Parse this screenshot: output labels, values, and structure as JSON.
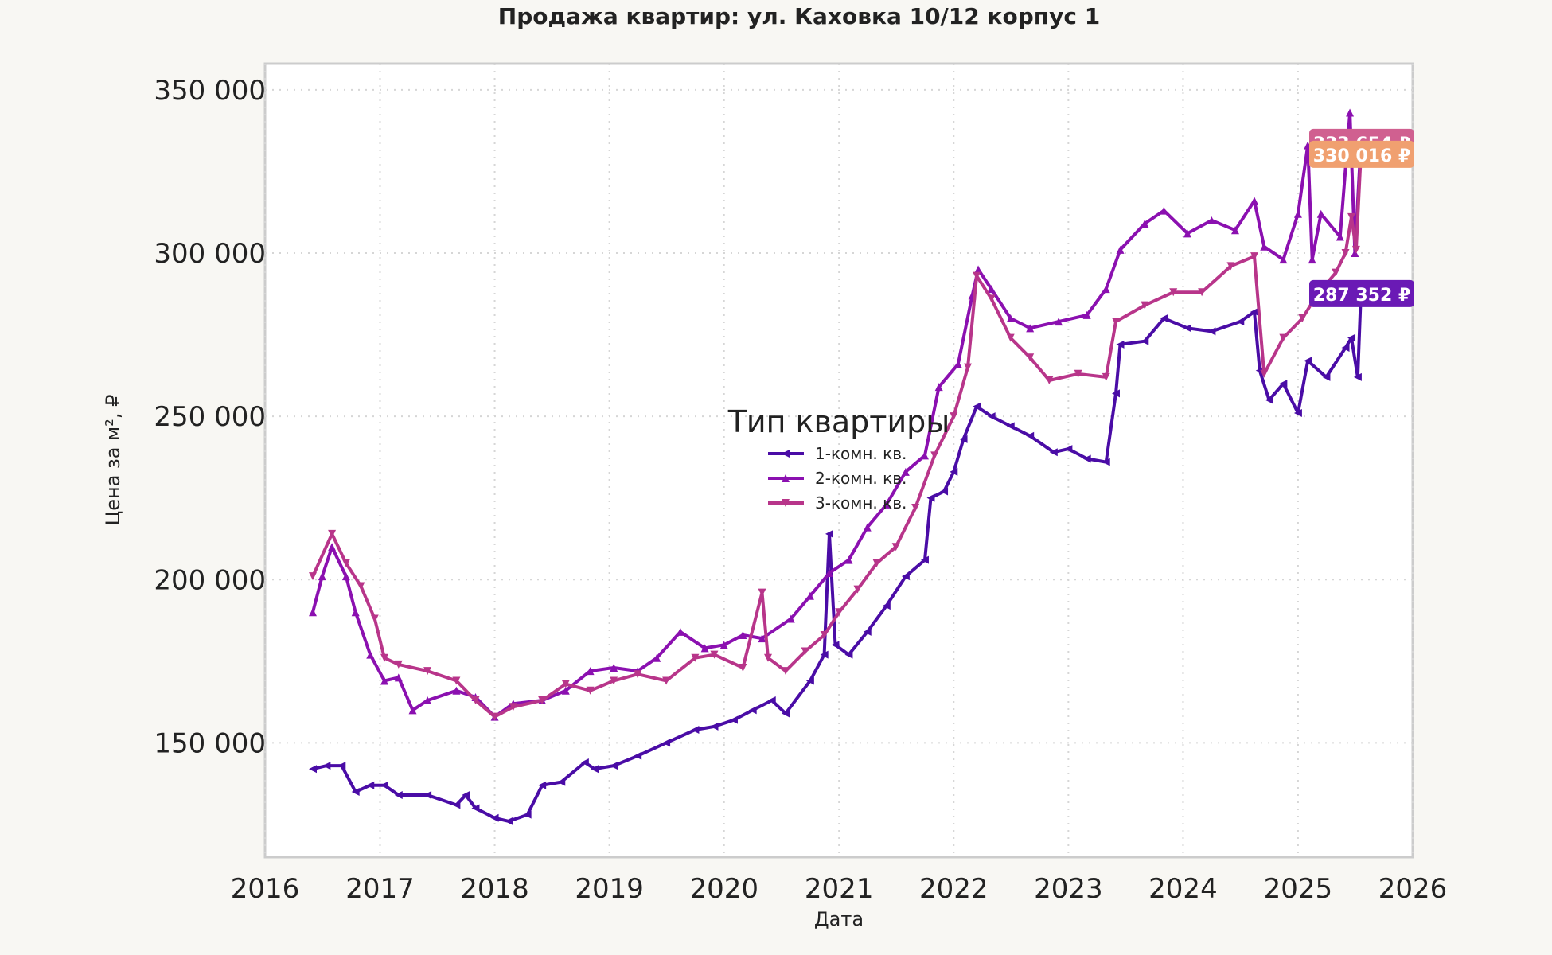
{
  "chart_data": {
    "type": "line",
    "title": "Продажа квартир: ул. Каховка 10/12 корпус 1",
    "xlabel": "Дата",
    "ylabel": "Цена за м², ₽",
    "xlim": [
      "2016-01-01",
      "2026-01-01"
    ],
    "ylim": [
      115000,
      358000
    ],
    "x_ticks": [
      "2016",
      "2017",
      "2018",
      "2019",
      "2020",
      "2021",
      "2022",
      "2023",
      "2024",
      "2025",
      "2026"
    ],
    "y_ticks": [
      150000,
      200000,
      250000,
      300000,
      350000
    ],
    "y_tick_labels": [
      "150 000",
      "200 000",
      "250 000",
      "300 000",
      "350 000"
    ],
    "grid": true,
    "legend": {
      "title": "Тип квартиры",
      "position": "center"
    },
    "series": [
      {
        "name": "1-комн. кв.",
        "color": "#4a0ca6",
        "marker": "triangle-left",
        "points": [
          [
            "2016-06-01",
            142000
          ],
          [
            "2016-07-15",
            143000
          ],
          [
            "2016-09-01",
            143000
          ],
          [
            "2016-10-15",
            135000
          ],
          [
            "2016-12-01",
            137000
          ],
          [
            "2017-01-15",
            137000
          ],
          [
            "2017-03-01",
            134000
          ],
          [
            "2017-06-01",
            134000
          ],
          [
            "2017-09-01",
            131000
          ],
          [
            "2017-10-01",
            134000
          ],
          [
            "2017-11-01",
            130000
          ],
          [
            "2018-01-01",
            127000
          ],
          [
            "2018-02-15",
            126000
          ],
          [
            "2018-04-15",
            128000
          ],
          [
            "2018-06-01",
            137000
          ],
          [
            "2018-08-01",
            138000
          ],
          [
            "2018-10-15",
            144000
          ],
          [
            "2018-11-15",
            142000
          ],
          [
            "2019-01-15",
            143000
          ],
          [
            "2019-04-01",
            146000
          ],
          [
            "2019-07-01",
            150000
          ],
          [
            "2019-10-01",
            154000
          ],
          [
            "2019-12-01",
            155000
          ],
          [
            "2020-02-01",
            157000
          ],
          [
            "2020-04-01",
            160000
          ],
          [
            "2020-06-01",
            163000
          ],
          [
            "2020-07-15",
            159000
          ],
          [
            "2020-10-01",
            169000
          ],
          [
            "2020-11-15",
            177000
          ],
          [
            "2020-12-01",
            214000
          ],
          [
            "2020-12-20",
            180000
          ],
          [
            "2021-02-01",
            177000
          ],
          [
            "2021-04-01",
            184000
          ],
          [
            "2021-06-01",
            192000
          ],
          [
            "2021-08-01",
            201000
          ],
          [
            "2021-10-01",
            206000
          ],
          [
            "2021-10-20",
            225000
          ],
          [
            "2021-12-01",
            227000
          ],
          [
            "2022-01-01",
            233000
          ],
          [
            "2022-02-01",
            243000
          ],
          [
            "2022-03-15",
            253000
          ],
          [
            "2022-05-01",
            250000
          ],
          [
            "2022-07-01",
            247000
          ],
          [
            "2022-09-01",
            244000
          ],
          [
            "2022-11-15",
            239000
          ],
          [
            "2023-01-01",
            240000
          ],
          [
            "2023-03-01",
            237000
          ],
          [
            "2023-05-01",
            236000
          ],
          [
            "2023-06-01",
            257000
          ],
          [
            "2023-06-15",
            272000
          ],
          [
            "2023-09-01",
            273000
          ],
          [
            "2023-11-01",
            280000
          ],
          [
            "2024-01-15",
            277000
          ],
          [
            "2024-04-01",
            276000
          ],
          [
            "2024-07-01",
            279000
          ],
          [
            "2024-08-15",
            282000
          ],
          [
            "2024-09-01",
            264000
          ],
          [
            "2024-10-01",
            255000
          ],
          [
            "2024-11-15",
            260000
          ],
          [
            "2025-01-01",
            251000
          ],
          [
            "2025-02-01",
            267000
          ],
          [
            "2025-04-01",
            262000
          ],
          [
            "2025-06-01",
            271000
          ],
          [
            "2025-06-20",
            274000
          ],
          [
            "2025-07-10",
            262000
          ],
          [
            "2025-07-20",
            287352
          ]
        ]
      },
      {
        "name": "2-комн. кв.",
        "color": "#8b10b0",
        "marker": "triangle-up",
        "points": [
          [
            "2016-06-01",
            190000
          ],
          [
            "2016-07-01",
            201000
          ],
          [
            "2016-08-01",
            210000
          ],
          [
            "2016-09-15",
            201000
          ],
          [
            "2016-10-15",
            190000
          ],
          [
            "2016-12-01",
            177000
          ],
          [
            "2017-01-15",
            169000
          ],
          [
            "2017-03-01",
            170000
          ],
          [
            "2017-04-15",
            160000
          ],
          [
            "2017-06-01",
            163000
          ],
          [
            "2017-09-01",
            166000
          ],
          [
            "2017-11-01",
            164000
          ],
          [
            "2018-01-01",
            158000
          ],
          [
            "2018-03-01",
            162000
          ],
          [
            "2018-06-01",
            163000
          ],
          [
            "2018-08-15",
            166000
          ],
          [
            "2018-11-01",
            172000
          ],
          [
            "2019-01-15",
            173000
          ],
          [
            "2019-04-01",
            172000
          ],
          [
            "2019-06-01",
            176000
          ],
          [
            "2019-08-15",
            184000
          ],
          [
            "2019-11-01",
            179000
          ],
          [
            "2020-01-01",
            180000
          ],
          [
            "2020-03-01",
            183000
          ],
          [
            "2020-05-01",
            182000
          ],
          [
            "2020-08-01",
            188000
          ],
          [
            "2020-10-01",
            195000
          ],
          [
            "2020-12-01",
            202000
          ],
          [
            "2021-02-01",
            206000
          ],
          [
            "2021-04-01",
            216000
          ],
          [
            "2021-06-01",
            223000
          ],
          [
            "2021-08-01",
            233000
          ],
          [
            "2021-10-01",
            238000
          ],
          [
            "2021-11-15",
            259000
          ],
          [
            "2022-01-15",
            266000
          ],
          [
            "2022-03-01",
            287000
          ],
          [
            "2022-03-20",
            295000
          ],
          [
            "2022-05-01",
            289000
          ],
          [
            "2022-07-01",
            280000
          ],
          [
            "2022-09-01",
            277000
          ],
          [
            "2022-12-01",
            279000
          ],
          [
            "2023-03-01",
            281000
          ],
          [
            "2023-05-01",
            289000
          ],
          [
            "2023-06-15",
            301000
          ],
          [
            "2023-09-01",
            309000
          ],
          [
            "2023-11-01",
            313000
          ],
          [
            "2024-01-15",
            306000
          ],
          [
            "2024-04-01",
            310000
          ],
          [
            "2024-06-15",
            307000
          ],
          [
            "2024-08-15",
            316000
          ],
          [
            "2024-09-15",
            302000
          ],
          [
            "2024-11-15",
            298000
          ],
          [
            "2025-01-01",
            312000
          ],
          [
            "2025-02-01",
            333000
          ],
          [
            "2025-02-15",
            298000
          ],
          [
            "2025-03-15",
            312000
          ],
          [
            "2025-05-15",
            305000
          ],
          [
            "2025-06-15",
            343000
          ],
          [
            "2025-07-01",
            300000
          ],
          [
            "2025-07-20",
            333654
          ]
        ]
      },
      {
        "name": "3-комн. кв.",
        "color": "#b8358a",
        "marker": "triangle-down",
        "points": [
          [
            "2016-06-01",
            201000
          ],
          [
            "2016-08-01",
            214000
          ],
          [
            "2016-09-15",
            205000
          ],
          [
            "2016-11-01",
            198000
          ],
          [
            "2016-12-15",
            188000
          ],
          [
            "2017-01-15",
            176000
          ],
          [
            "2017-03-01",
            174000
          ],
          [
            "2017-06-01",
            172000
          ],
          [
            "2017-09-01",
            169000
          ],
          [
            "2017-11-01",
            163000
          ],
          [
            "2018-01-01",
            158000
          ],
          [
            "2018-03-01",
            161000
          ],
          [
            "2018-06-01",
            163000
          ],
          [
            "2018-08-15",
            168000
          ],
          [
            "2018-11-01",
            166000
          ],
          [
            "2019-01-15",
            169000
          ],
          [
            "2019-04-01",
            171000
          ],
          [
            "2019-07-01",
            169000
          ],
          [
            "2019-10-01",
            176000
          ],
          [
            "2019-12-01",
            177000
          ],
          [
            "2020-03-01",
            173000
          ],
          [
            "2020-05-01",
            196000
          ],
          [
            "2020-05-20",
            176000
          ],
          [
            "2020-07-15",
            172000
          ],
          [
            "2020-09-15",
            178000
          ],
          [
            "2020-11-15",
            183000
          ],
          [
            "2021-01-01",
            190000
          ],
          [
            "2021-03-01",
            197000
          ],
          [
            "2021-05-01",
            205000
          ],
          [
            "2021-07-01",
            210000
          ],
          [
            "2021-09-01",
            222000
          ],
          [
            "2021-11-01",
            238000
          ],
          [
            "2022-01-01",
            250000
          ],
          [
            "2022-02-15",
            265000
          ],
          [
            "2022-03-15",
            293000
          ],
          [
            "2022-05-01",
            286000
          ],
          [
            "2022-07-01",
            274000
          ],
          [
            "2022-09-01",
            268000
          ],
          [
            "2022-11-01",
            261000
          ],
          [
            "2023-02-01",
            263000
          ],
          [
            "2023-05-01",
            262000
          ],
          [
            "2023-06-01",
            279000
          ],
          [
            "2023-09-01",
            284000
          ],
          [
            "2023-12-01",
            288000
          ],
          [
            "2024-03-01",
            288000
          ],
          [
            "2024-06-01",
            296000
          ],
          [
            "2024-08-15",
            299000
          ],
          [
            "2024-09-15",
            263000
          ],
          [
            "2024-11-15",
            274000
          ],
          [
            "2025-01-15",
            280000
          ],
          [
            "2025-03-01",
            287000
          ],
          [
            "2025-05-01",
            294000
          ],
          [
            "2025-06-01",
            300000
          ],
          [
            "2025-06-20",
            311000
          ],
          [
            "2025-07-05",
            301000
          ],
          [
            "2025-07-20",
            330016
          ]
        ]
      }
    ],
    "last_value_labels": [
      {
        "series": "1-комн. кв.",
        "text": "287 352 ₽",
        "value": 287352,
        "color": "#6a1ab5"
      },
      {
        "series": "2-комн. кв.",
        "text": "333 654 ₽",
        "value": 333654,
        "color": "#d06090"
      },
      {
        "series": "3-комн. кв.",
        "text": "330 016 ₽",
        "value": 330016,
        "color": "#f0a070"
      }
    ]
  }
}
